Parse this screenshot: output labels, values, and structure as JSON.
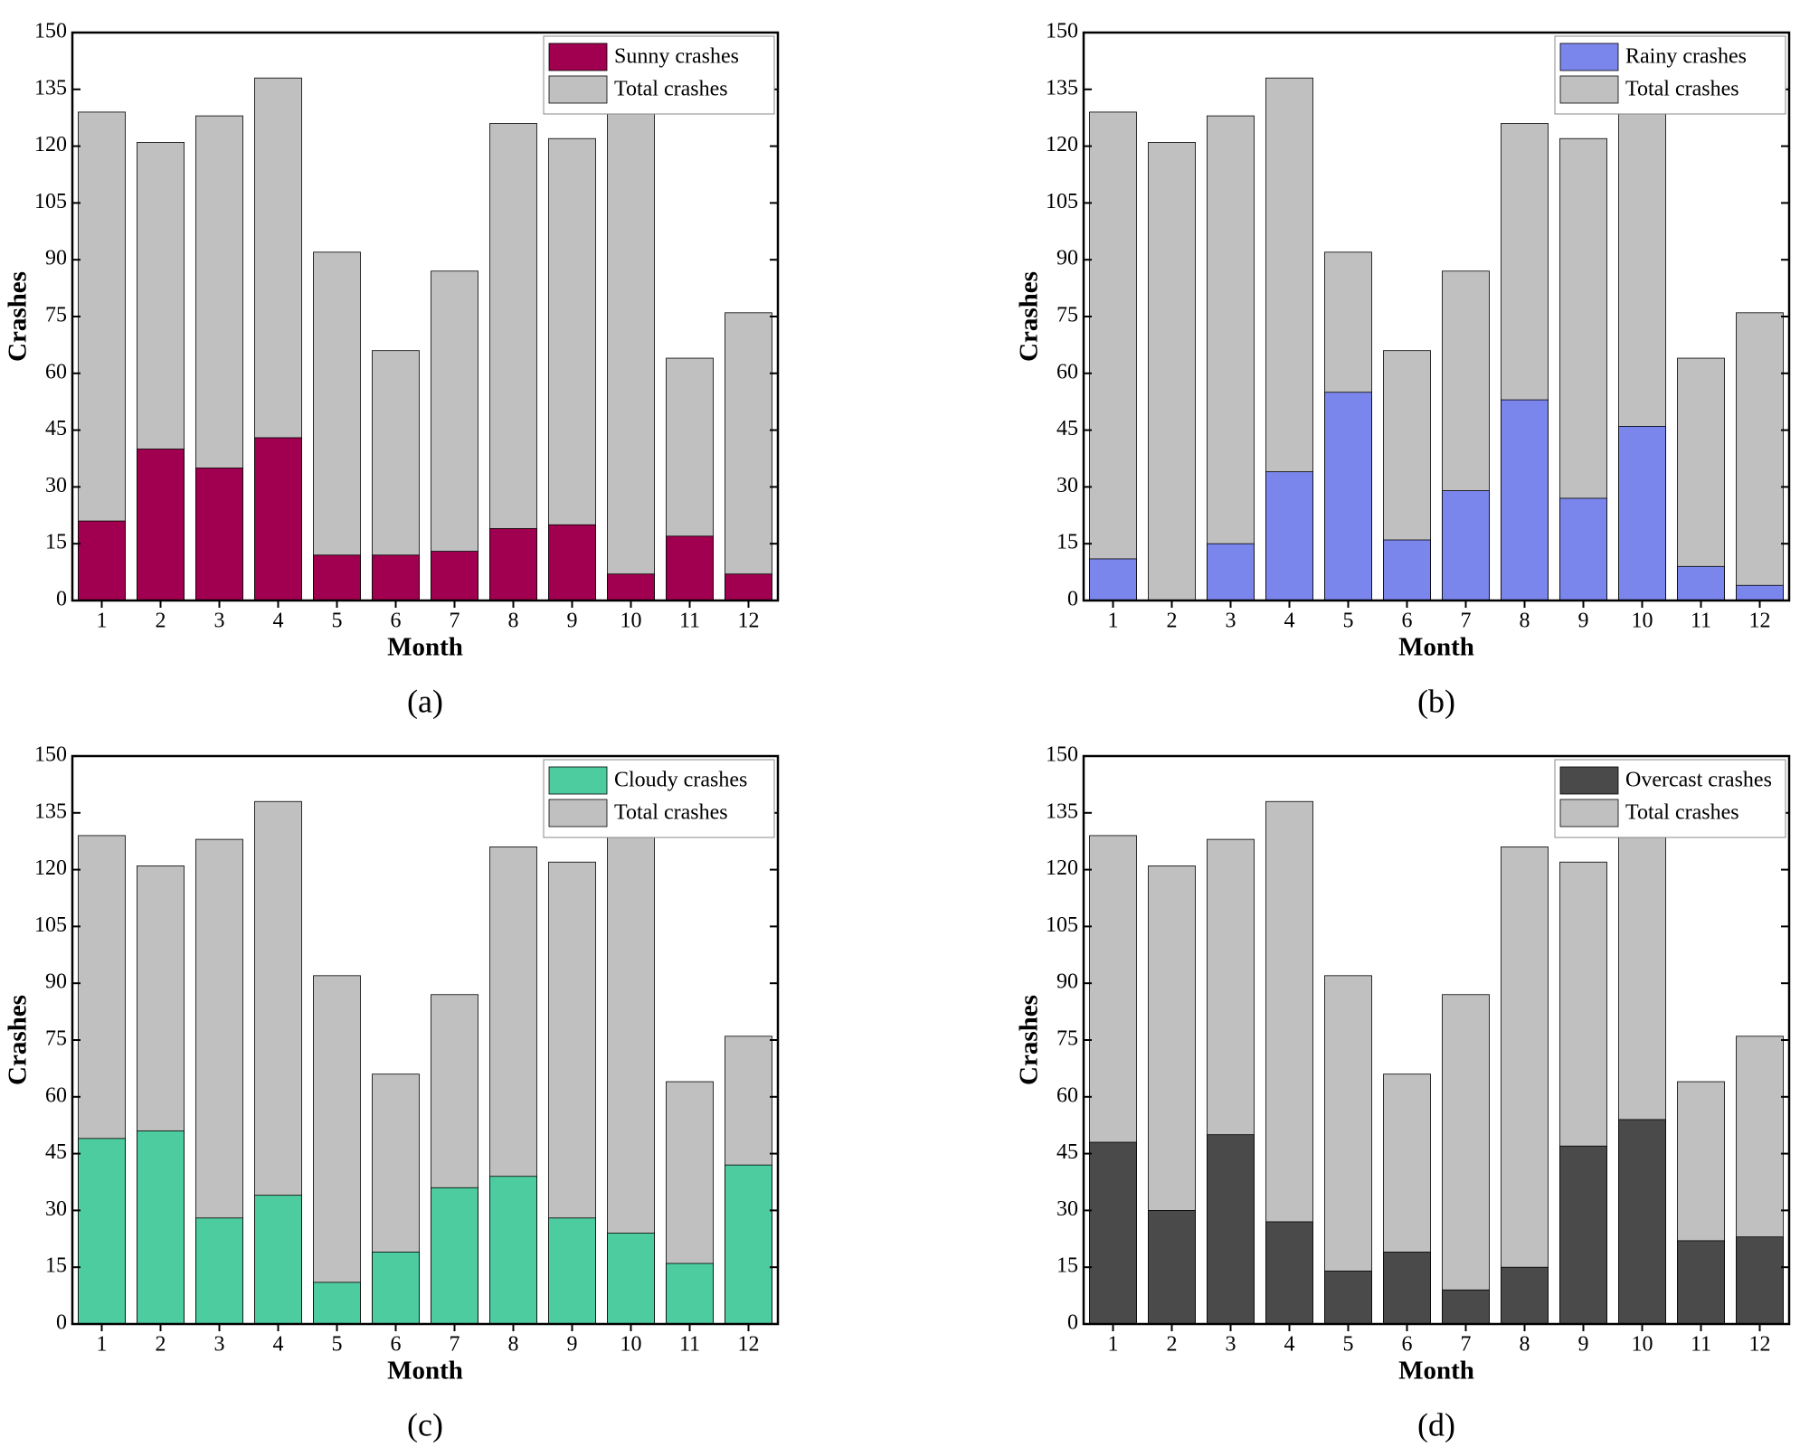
{
  "chart_data": [
    {
      "type": "bar",
      "caption": "(a)",
      "xlabel": "Month",
      "ylabel": "Crashes",
      "categories": [
        1,
        2,
        3,
        4,
        5,
        6,
        7,
        8,
        9,
        10,
        11,
        12
      ],
      "series": [
        {
          "name": "Sunny crashes",
          "color": "#a0004f",
          "values": [
            21,
            40,
            35,
            43,
            12,
            12,
            13,
            19,
            20,
            7,
            17,
            7
          ]
        },
        {
          "name": "Total crashes",
          "color": "#c0c0c0",
          "values": [
            129,
            121,
            128,
            138,
            92,
            66,
            87,
            126,
            122,
            131,
            64,
            76
          ]
        }
      ],
      "ylim": [
        0,
        150
      ],
      "yticks": [
        0,
        15,
        30,
        45,
        60,
        75,
        90,
        105,
        120,
        135,
        150
      ],
      "legend": "upper right"
    },
    {
      "type": "bar",
      "caption": "(b)",
      "xlabel": "Month",
      "ylabel": "Crashes",
      "categories": [
        1,
        2,
        3,
        4,
        5,
        6,
        7,
        8,
        9,
        10,
        11,
        12
      ],
      "series": [
        {
          "name": "Rainy crashes",
          "color": "#7b86ec",
          "values": [
            11,
            0,
            15,
            34,
            55,
            16,
            29,
            53,
            27,
            46,
            9,
            4
          ]
        },
        {
          "name": "Total crashes",
          "color": "#c0c0c0",
          "values": [
            129,
            121,
            128,
            138,
            92,
            66,
            87,
            126,
            122,
            131,
            64,
            76
          ]
        }
      ],
      "ylim": [
        0,
        150
      ],
      "yticks": [
        0,
        15,
        30,
        45,
        60,
        75,
        90,
        105,
        120,
        135,
        150
      ],
      "legend": "upper right"
    },
    {
      "type": "bar",
      "caption": "(c)",
      "xlabel": "Month",
      "ylabel": "Crashes",
      "categories": [
        1,
        2,
        3,
        4,
        5,
        6,
        7,
        8,
        9,
        10,
        11,
        12
      ],
      "series": [
        {
          "name": "Cloudy crashes",
          "color": "#4ccc9f",
          "values": [
            49,
            51,
            28,
            34,
            11,
            19,
            36,
            39,
            28,
            24,
            16,
            42
          ]
        },
        {
          "name": "Total crashes",
          "color": "#c0c0c0",
          "values": [
            129,
            121,
            128,
            138,
            92,
            66,
            87,
            126,
            122,
            131,
            64,
            76
          ]
        }
      ],
      "ylim": [
        0,
        150
      ],
      "yticks": [
        0,
        15,
        30,
        45,
        60,
        75,
        90,
        105,
        120,
        135,
        150
      ],
      "legend": "upper right"
    },
    {
      "type": "bar",
      "caption": "(d)",
      "xlabel": "Month",
      "ylabel": "Crashes",
      "categories": [
        1,
        2,
        3,
        4,
        5,
        6,
        7,
        8,
        9,
        10,
        11,
        12
      ],
      "series": [
        {
          "name": "Overcast crashes",
          "color": "#4a4a4a",
          "values": [
            48,
            30,
            50,
            27,
            14,
            19,
            9,
            15,
            47,
            54,
            22,
            23
          ]
        },
        {
          "name": "Total crashes",
          "color": "#c0c0c0",
          "values": [
            129,
            121,
            128,
            138,
            92,
            66,
            87,
            126,
            122,
            131,
            64,
            76
          ]
        }
      ],
      "ylim": [
        0,
        150
      ],
      "yticks": [
        0,
        15,
        30,
        45,
        60,
        75,
        90,
        105,
        120,
        135,
        150
      ],
      "legend": "upper right"
    }
  ]
}
